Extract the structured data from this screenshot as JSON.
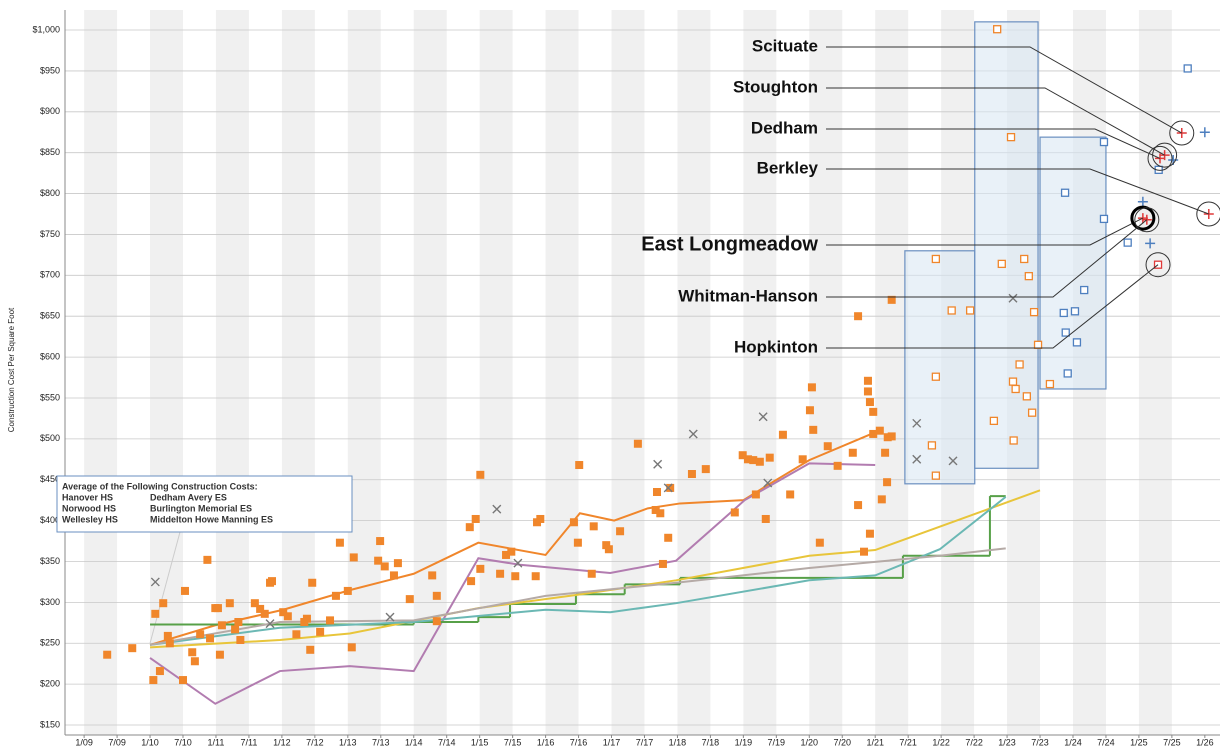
{
  "chart_data": {
    "type": "scatter",
    "y_axis_label": "Construction Cost Per Square Foot",
    "xlim": [
      2008.71,
      2026.23
    ],
    "ylim": [
      137.8,
      1024.5
    ],
    "xticks": [
      {
        "value": 2009,
        "label": "1/09"
      },
      {
        "value": 2009.5,
        "label": "7/09"
      },
      {
        "value": 2010,
        "label": "1/10"
      },
      {
        "value": 2010.5,
        "label": "7/10"
      },
      {
        "value": 2011,
        "label": "1/11"
      },
      {
        "value": 2011.5,
        "label": "7/11"
      },
      {
        "value": 2012,
        "label": "1/12"
      },
      {
        "value": 2012.5,
        "label": "7/12"
      },
      {
        "value": 2013,
        "label": "1/13"
      },
      {
        "value": 2013.5,
        "label": "7/13"
      },
      {
        "value": 2014,
        "label": "1/14"
      },
      {
        "value": 2014.5,
        "label": "7/14"
      },
      {
        "value": 2015,
        "label": "1/15"
      },
      {
        "value": 2015.5,
        "label": "7/15"
      },
      {
        "value": 2016,
        "label": "1/16"
      },
      {
        "value": 2016.5,
        "label": "7/16"
      },
      {
        "value": 2017,
        "label": "1/17"
      },
      {
        "value": 2017.5,
        "label": "7/17"
      },
      {
        "value": 2018,
        "label": "1/18"
      },
      {
        "value": 2018.5,
        "label": "7/18"
      },
      {
        "value": 2019,
        "label": "1/19"
      },
      {
        "value": 2019.5,
        "label": "7/19"
      },
      {
        "value": 2020,
        "label": "1/20"
      },
      {
        "value": 2020.5,
        "label": "7/20"
      },
      {
        "value": 2021,
        "label": "1/21"
      },
      {
        "value": 2021.5,
        "label": "7/21"
      },
      {
        "value": 2022,
        "label": "1/22"
      },
      {
        "value": 2022.5,
        "label": "7/22"
      },
      {
        "value": 2023,
        "label": "1/23"
      },
      {
        "value": 2023.5,
        "label": "7/23"
      },
      {
        "value": 2024,
        "label": "1/24"
      },
      {
        "value": 2024.5,
        "label": "7/24"
      },
      {
        "value": 2025,
        "label": "1/25"
      },
      {
        "value": 2025.5,
        "label": "7/25"
      },
      {
        "value": 2026,
        "label": "1/26"
      }
    ],
    "yticks": [
      {
        "value": 150,
        "label": "$150"
      },
      {
        "value": 200,
        "label": "$200"
      },
      {
        "value": 250,
        "label": "$250"
      },
      {
        "value": 300,
        "label": "$300"
      },
      {
        "value": 350,
        "label": "$350"
      },
      {
        "value": 400,
        "label": "$400"
      },
      {
        "value": 450,
        "label": "$450"
      },
      {
        "value": 500,
        "label": "$500"
      },
      {
        "value": 550,
        "label": "$550"
      },
      {
        "value": 600,
        "label": "$600"
      },
      {
        "value": 650,
        "label": "$650"
      },
      {
        "value": 700,
        "label": "$700"
      },
      {
        "value": 750,
        "label": "$750"
      },
      {
        "value": 800,
        "label": "$800"
      },
      {
        "value": 850,
        "label": "$850"
      },
      {
        "value": 900,
        "label": "$900"
      },
      {
        "value": 950,
        "label": "$950"
      },
      {
        "value": 1000,
        "label": "$1,000"
      }
    ],
    "grid": true,
    "bands": true,
    "boxes": [
      {
        "x0": 2021.45,
        "x1": 2022.51,
        "low": 445,
        "high": 730
      },
      {
        "x0": 2022.51,
        "x1": 2023.47,
        "low": 464,
        "high": 1010
      },
      {
        "x0": 2023.5,
        "x1": 2024.5,
        "low": 561,
        "high": 869
      }
    ],
    "series": [
      {
        "marker": "square-filled",
        "color": "#f0862b",
        "x": [
          2009.35,
          2009.73,
          2010.05,
          2010.08,
          2010.15,
          2010.2,
          2010.27,
          2010.3,
          2010.5,
          2010.53,
          2010.64,
          2010.68,
          2010.76,
          2010.87,
          2010.91,
          2010.99,
          2011.03,
          2011.06,
          2011.09,
          2011.21,
          2011.29,
          2011.34,
          2011.37,
          2011.59,
          2011.67,
          2011.74,
          2011.82,
          2011.85,
          2012.02,
          2012.09,
          2012.22,
          2012.34,
          2012.38,
          2012.43,
          2012.46,
          2012.58,
          2012.73,
          2012.82,
          2012.88,
          2013.0,
          2013.06,
          2013.09,
          2013.46,
          2013.49,
          2013.56,
          2013.7,
          2013.76,
          2013.94,
          2014.28,
          2014.35,
          2014.35,
          2014.85,
          2014.94,
          2014.87,
          2015.01,
          2015.01,
          2015.31,
          2015.4,
          2015.48,
          2015.54,
          2015.85,
          2015.87,
          2015.92,
          2016.43,
          2016.49,
          2016.51,
          2016.7,
          2016.73,
          2016.92,
          2016.96,
          2017.13,
          2017.4,
          2017.67,
          2017.69,
          2017.74,
          2017.78,
          2017.86,
          2017.89,
          2018.22,
          2018.43,
          2018.87,
          2018.99,
          2019.07,
          2019.15,
          2019.19,
          2019.25,
          2019.34,
          2019.4,
          2019.6,
          2019.71,
          2019.9,
          2020.04,
          2020.01,
          2020.06,
          2020.16,
          2020.28,
          2020.43,
          2020.66,
          2020.74,
          2020.74,
          2020.83,
          2020.89,
          2020.89,
          2020.92,
          2020.92,
          2020.97,
          2020.97,
          2021.07,
          2021.1,
          2021.15,
          2021.18,
          2021.19,
          2021.25,
          2021.25
        ],
        "values": [
          236,
          244,
          205,
          286,
          216,
          299,
          259,
          250,
          205,
          314,
          239,
          228,
          261,
          352,
          256,
          293,
          293,
          236,
          272,
          299,
          267,
          276,
          254,
          299,
          292,
          286,
          324,
          326,
          288,
          283,
          261,
          276,
          280,
          242,
          324,
          264,
          278,
          308,
          373,
          314,
          245,
          355,
          351,
          375,
          344,
          333,
          348,
          304,
          333,
          277,
          308,
          392,
          402,
          326,
          456,
          341,
          335,
          358,
          362,
          332,
          332,
          398,
          402,
          398,
          373,
          468,
          335,
          393,
          370,
          365,
          387,
          494,
          413,
          435,
          409,
          347,
          379,
          440,
          457,
          463,
          410,
          480,
          475,
          474,
          432,
          472,
          402,
          477,
          505,
          432,
          475,
          563,
          535,
          511,
          373,
          491,
          467,
          483,
          419,
          650,
          362,
          571,
          558,
          384,
          545,
          533,
          506,
          510,
          426,
          483,
          447,
          502,
          503,
          670
        ]
      },
      {
        "marker": "square-open",
        "color": "#f0862b",
        "x": [
          2021.92,
          2021.92,
          2021.86,
          2021.92,
          2022.16,
          2022.44,
          2022.85,
          2023.06,
          2022.92,
          2023.26,
          2023.33,
          2023.41,
          2022.8,
          2023.19,
          2023.09,
          2023.13,
          2023.3,
          2023.38,
          2023.1,
          2023.47,
          2023.65
        ],
        "values": [
          720,
          576,
          492,
          455,
          657,
          657,
          1001,
          869,
          714,
          720,
          699,
          655,
          522,
          591,
          570,
          561,
          552,
          532,
          498,
          615,
          567
        ]
      },
      {
        "marker": "square-open",
        "color": "#4e7fbf",
        "x": [
          2024.47,
          2023.88,
          2024.47,
          2024.17,
          2023.86,
          2024.03,
          2023.89,
          2024.06,
          2023.92,
          2024.83,
          2025.3,
          2025.74
        ],
        "values": [
          863,
          801,
          769,
          682,
          654,
          656,
          630,
          618,
          580,
          740,
          829,
          953
        ]
      },
      {
        "marker": "plus",
        "color": "#4e7fbf",
        "x": [
          2025.06,
          2025.17,
          2025.52,
          2026.0
        ],
        "values": [
          790,
          739,
          841,
          875
        ]
      },
      {
        "marker": "plus",
        "color": "#e03a3a",
        "x": [
          2025.65,
          2025.39,
          2025.32,
          2026.06,
          2025.06,
          2025.12
        ],
        "values": [
          874,
          847,
          843,
          775,
          770,
          768
        ]
      },
      {
        "marker": "square-open",
        "color": "#e03a3a",
        "x": [
          2025.29
        ],
        "values": [
          713
        ]
      },
      {
        "marker": "x",
        "color": "#777777",
        "x": [
          2010.08,
          2011.82,
          2013.64,
          2015.26,
          2015.58,
          2017.7,
          2017.86,
          2018.24,
          2019.3,
          2019.37,
          2021.63,
          2021.63,
          2022.18,
          2023.09
        ],
        "values": [
          325,
          274,
          282,
          414,
          348,
          469,
          440,
          506,
          527,
          446,
          519,
          475,
          473,
          672
        ]
      },
      {
        "line": "straight",
        "color": "#f0862b",
        "x": [
          2010,
          2010.99,
          2012.02,
          2013.03,
          2014,
          2014.98,
          2016,
          2016.52,
          2017.04,
          2017.55,
          2018.04,
          2019.0,
          2019.4,
          2020.0,
          2021.0
        ],
        "values": [
          248,
          272,
          291,
          315,
          335,
          373,
          358,
          409,
          400,
          415,
          421,
          425,
          445,
          474,
          508
        ]
      },
      {
        "line": "straight",
        "color": "#b27cb0",
        "x": [
          2010,
          2010.99,
          2011.97,
          2013.03,
          2014,
          2014.98,
          2015.61,
          2016.98,
          2017.98,
          2019.02,
          2020,
          2021
        ],
        "values": [
          232,
          176,
          216,
          222,
          216,
          354,
          346,
          336,
          351,
          425,
          470,
          468
        ]
      },
      {
        "line": "step",
        "color": "#57a048",
        "x": [
          2010,
          2014,
          2014.98,
          2015.46,
          2016.46,
          2017.2,
          2018.04,
          2021.42,
          2022.74,
          2022.98
        ],
        "values": [
          273,
          276,
          282,
          298,
          310,
          322,
          330,
          357,
          430,
          430
        ]
      },
      {
        "line": "straight",
        "color": "#e8c53a",
        "x": [
          2010,
          2011.97,
          2013.03,
          2014.98,
          2016.46,
          2017.98,
          2020,
          2021,
          2023.5
        ],
        "values": [
          245,
          254,
          262,
          293,
          309,
          327,
          357,
          364,
          437
        ]
      },
      {
        "line": "straight",
        "color": "#6bb8b4",
        "x": [
          2010,
          2011.97,
          2014,
          2015.46,
          2016,
          2016.98,
          2017.98,
          2020,
          2021,
          2021.98,
          2022.98
        ],
        "values": [
          248,
          269,
          276,
          287,
          291,
          288,
          299,
          327,
          333,
          365,
          429
        ]
      },
      {
        "line": "straight",
        "color": "#b5aaa6",
        "x": [
          2010,
          2011.97,
          2014,
          2016,
          2017.98,
          2020,
          2021.98,
          2022.98
        ],
        "values": [
          248,
          276,
          278,
          308,
          324,
          342,
          357,
          366
        ]
      }
    ],
    "annotations": [
      {
        "text": "Scituate",
        "x": 2025.65,
        "y": 874
      },
      {
        "text": "Stoughton",
        "x": 2025.39,
        "y": 847
      },
      {
        "text": "Dedham",
        "x": 2025.32,
        "y": 843
      },
      {
        "text": "Berkley",
        "x": 2026.06,
        "y": 775
      },
      {
        "text": "East Longmeadow",
        "x": 2025.06,
        "y": 770,
        "highlight": true
      },
      {
        "text": "Whitman-Hanson",
        "x": 2025.12,
        "y": 768
      },
      {
        "text": "Hopkinton",
        "x": 2025.29,
        "y": 713
      }
    ],
    "legend_box": {
      "title": "Average of the Following Construction Costs:",
      "items": [
        "Hanover HS",
        "Dedham Avery ES",
        "Norwood HS",
        "Burlington Memorial ES",
        "Wellesley HS",
        "Middelton Howe Manning ES"
      ]
    }
  }
}
